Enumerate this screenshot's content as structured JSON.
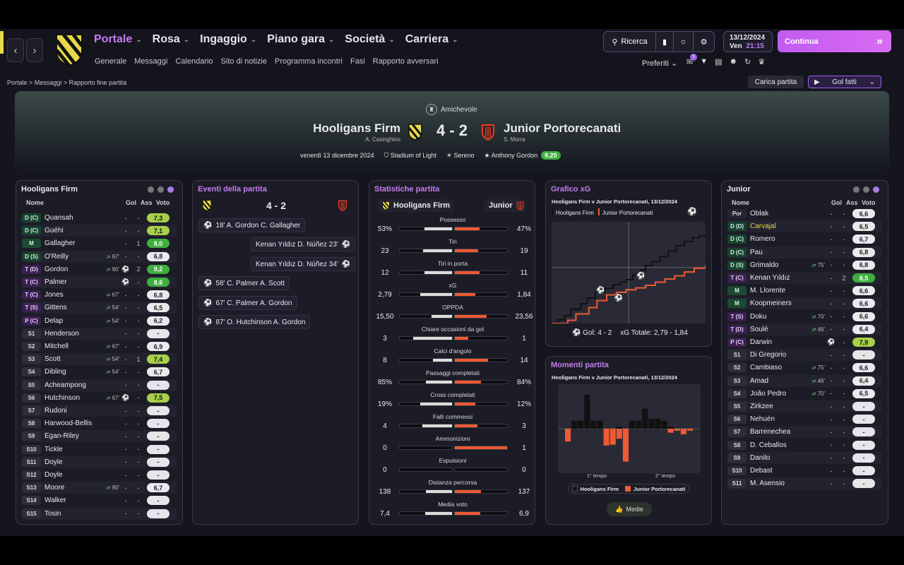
{
  "nav": {
    "menu": [
      "Portale",
      "Rosa",
      "Ingaggio",
      "Piano gara",
      "Società",
      "Carriera"
    ],
    "submenu": [
      "Generale",
      "Messaggi",
      "Calendario",
      "Sito di notizie",
      "Programma incontri",
      "Fasi",
      "Rapporto avversari"
    ],
    "search": "Ricerca",
    "date": "13/12/2024",
    "day": "Ven",
    "time": "21:15",
    "continue": "Continua",
    "prefs": "Preferiti",
    "badge": "5"
  },
  "breadcrumb": [
    "Portale",
    "Messaggi",
    "Rapporto fine partita"
  ],
  "actions": {
    "load": "Carica partita",
    "goals": "Gol fatti"
  },
  "match": {
    "competition": "Amichevole",
    "home": "Hooligans Firm",
    "home_mgr": "A. Casinghino",
    "score": "4 - 2",
    "away": "Junior Portorecanati",
    "away_mgr": "S. Morra",
    "date": "venerdì 13 dicembre 2024",
    "stadium": "Stadium of Light",
    "weather": "Sereno",
    "motm": "Anthony Gordon",
    "motm_rating": "9,20"
  },
  "home_panel": {
    "title": "Hooligans Firm",
    "cols": [
      "Nome",
      "Gol",
      "Ass",
      "Voto"
    ],
    "players": [
      {
        "pos": "D (C)",
        "t": "d",
        "name": "Quansah",
        "sub": "",
        "icon": "",
        "gol": "-",
        "ass": "-",
        "vote": "7,3",
        "vc": "v-g1"
      },
      {
        "pos": "D (C)",
        "t": "d",
        "name": "Guéhi",
        "sub": "",
        "icon": "",
        "gol": "-",
        "ass": "-",
        "vote": "7,1",
        "vc": "v-g1"
      },
      {
        "pos": "M",
        "t": "m",
        "name": "Gallagher",
        "sub": "",
        "icon": "",
        "gol": "-",
        "ass": "1",
        "vote": "8,0",
        "vc": "v-g2"
      },
      {
        "pos": "D (S)",
        "t": "d",
        "name": "O'Reilly",
        "sub": "67'",
        "icon": "",
        "gol": "-",
        "ass": "-",
        "vote": "6,8",
        "vc": "v-w"
      },
      {
        "pos": "T (D)",
        "t": "t",
        "name": "Gordon",
        "sub": "90'",
        "icon": "⚽",
        "gol": "",
        "ass": "2",
        "vote": "9,2",
        "vc": "v-g2"
      },
      {
        "pos": "T (C)",
        "t": "t",
        "name": "Palmer",
        "sub": "",
        "icon": "⚽",
        "gol": "",
        "ass": "-",
        "vote": "8,6",
        "vc": "v-g2"
      },
      {
        "pos": "T (C)",
        "t": "t",
        "name": "Jones",
        "sub": "67'",
        "icon": "",
        "gol": "-",
        "ass": "-",
        "vote": "6,8",
        "vc": "v-w"
      },
      {
        "pos": "T (S)",
        "t": "t",
        "name": "Gittens",
        "sub": "54'",
        "icon": "",
        "gol": "-",
        "ass": "-",
        "vote": "6,5",
        "vc": "v-w"
      },
      {
        "pos": "P (C)",
        "t": "t",
        "name": "Delap",
        "sub": "54'",
        "icon": "",
        "gol": "-",
        "ass": "-",
        "vote": "6,2",
        "vc": "v-w"
      },
      {
        "pos": "S1",
        "t": "s",
        "name": "Henderson",
        "sub": "",
        "icon": "",
        "gol": "-",
        "ass": "-",
        "vote": "-",
        "vc": "v-no"
      },
      {
        "pos": "S2",
        "t": "s",
        "name": "Mitchell",
        "sub": "67'",
        "icon": "",
        "gol": "-",
        "ass": "-",
        "vote": "6,9",
        "vc": "v-w"
      },
      {
        "pos": "S3",
        "t": "s",
        "name": "Scott",
        "sub": "54'",
        "icon": "",
        "gol": "-",
        "ass": "1",
        "vote": "7,4",
        "vc": "v-g1"
      },
      {
        "pos": "S4",
        "t": "s",
        "name": "Dibling",
        "sub": "54'",
        "icon": "",
        "gol": "-",
        "ass": "-",
        "vote": "6,7",
        "vc": "v-w"
      },
      {
        "pos": "S5",
        "t": "s",
        "name": "Acheampong",
        "sub": "",
        "icon": "",
        "gol": "-",
        "ass": "-",
        "vote": "-",
        "vc": "v-no"
      },
      {
        "pos": "S6",
        "t": "s",
        "name": "Hutchinson",
        "sub": "67'",
        "icon": "⚽",
        "gol": "",
        "ass": "-",
        "vote": "7,5",
        "vc": "v-g1"
      },
      {
        "pos": "S7",
        "t": "s",
        "name": "Rudoni",
        "sub": "",
        "icon": "",
        "gol": "-",
        "ass": "-",
        "vote": "-",
        "vc": "v-no"
      },
      {
        "pos": "S8",
        "t": "s",
        "name": "Harwood-Bellis",
        "sub": "",
        "icon": "",
        "gol": "-",
        "ass": "-",
        "vote": "-",
        "vc": "v-no"
      },
      {
        "pos": "S9",
        "t": "s",
        "name": "Egan-Riley",
        "sub": "",
        "icon": "",
        "gol": "-",
        "ass": "-",
        "vote": "-",
        "vc": "v-no"
      },
      {
        "pos": "S10",
        "t": "s",
        "name": "Tickle",
        "sub": "",
        "icon": "",
        "gol": "-",
        "ass": "-",
        "vote": "-",
        "vc": "v-no"
      },
      {
        "pos": "S11",
        "t": "s",
        "name": "Doyle",
        "sub": "",
        "icon": "",
        "gol": "-",
        "ass": "-",
        "vote": "-",
        "vc": "v-no"
      },
      {
        "pos": "S12",
        "t": "s",
        "name": "Doyle",
        "sub": "",
        "icon": "",
        "gol": "-",
        "ass": "-",
        "vote": "-",
        "vc": "v-no"
      },
      {
        "pos": "S13",
        "t": "s",
        "name": "Moore",
        "sub": "90'",
        "icon": "",
        "gol": "-",
        "ass": "-",
        "vote": "6,7",
        "vc": "v-w"
      },
      {
        "pos": "S14",
        "t": "s",
        "name": "Walker",
        "sub": "",
        "icon": "",
        "gol": "-",
        "ass": "-",
        "vote": "-",
        "vc": "v-no"
      },
      {
        "pos": "S15",
        "t": "s",
        "name": "Tosin",
        "sub": "",
        "icon": "",
        "gol": "-",
        "ass": "-",
        "vote": "-",
        "vc": "v-no"
      }
    ]
  },
  "away_panel": {
    "title": "Junior",
    "cols": [
      "Nome",
      "Gol",
      "Ass",
      "Voto"
    ],
    "players": [
      {
        "pos": "Por",
        "t": "gk",
        "name": "Oblak",
        "sub": "",
        "icon": "",
        "gol": "-",
        "ass": "-",
        "vote": "6,6",
        "vc": "v-w"
      },
      {
        "pos": "D (D)",
        "t": "d",
        "name": "Carvajal",
        "sub": "",
        "icon": "",
        "gol": "-",
        "ass": "-",
        "vote": "6,5",
        "vc": "v-w",
        "yellow": true
      },
      {
        "pos": "D (C)",
        "t": "d",
        "name": "Romero",
        "sub": "",
        "icon": "",
        "gol": "-",
        "ass": "-",
        "vote": "6,7",
        "vc": "v-w"
      },
      {
        "pos": "D (C)",
        "t": "d",
        "name": "Pau",
        "sub": "",
        "icon": "",
        "gol": "-",
        "ass": "-",
        "vote": "6,8",
        "vc": "v-w"
      },
      {
        "pos": "D (S)",
        "t": "d",
        "name": "Grimaldo",
        "sub": "75'",
        "icon": "",
        "gol": "-",
        "ass": "-",
        "vote": "6,8",
        "vc": "v-w"
      },
      {
        "pos": "T (C)",
        "t": "t",
        "name": "Kenan Yıldız",
        "sub": "",
        "icon": "",
        "gol": "-",
        "ass": "2",
        "vote": "8,5",
        "vc": "v-g2"
      },
      {
        "pos": "M",
        "t": "m",
        "name": "M. Llorente",
        "sub": "",
        "icon": "",
        "gol": "-",
        "ass": "-",
        "vote": "6,6",
        "vc": "v-w"
      },
      {
        "pos": "M",
        "t": "m",
        "name": "Koopmeiners",
        "sub": "",
        "icon": "",
        "gol": "-",
        "ass": "-",
        "vote": "6,6",
        "vc": "v-w"
      },
      {
        "pos": "T (S)",
        "t": "t",
        "name": "Doku",
        "sub": "70'",
        "icon": "",
        "gol": "-",
        "ass": "-",
        "vote": "6,6",
        "vc": "v-w"
      },
      {
        "pos": "T (D)",
        "t": "t",
        "name": "Soulé",
        "sub": "46'",
        "icon": "",
        "gol": "-",
        "ass": "-",
        "vote": "6,4",
        "vc": "v-w"
      },
      {
        "pos": "P (C)",
        "t": "t",
        "name": "Darwin",
        "sub": "",
        "icon": "⚽",
        "gol": "",
        "ass": "-",
        "vote": "7,9",
        "vc": "v-g1"
      },
      {
        "pos": "S1",
        "t": "s",
        "name": "Di Gregorio",
        "sub": "",
        "icon": "",
        "gol": "-",
        "ass": "-",
        "vote": "-",
        "vc": "v-no"
      },
      {
        "pos": "S2",
        "t": "s",
        "name": "Cambiaso",
        "sub": "75'",
        "icon": "",
        "gol": "-",
        "ass": "-",
        "vote": "6,6",
        "vc": "v-w"
      },
      {
        "pos": "S3",
        "t": "s",
        "name": "Amad",
        "sub": "46'",
        "icon": "",
        "gol": "-",
        "ass": "-",
        "vote": "6,4",
        "vc": "v-w"
      },
      {
        "pos": "S4",
        "t": "s",
        "name": "João Pedro",
        "sub": "70'",
        "icon": "",
        "gol": "-",
        "ass": "-",
        "vote": "6,5",
        "vc": "v-w"
      },
      {
        "pos": "S5",
        "t": "s",
        "name": "Zirkzee",
        "sub": "",
        "icon": "",
        "gol": "-",
        "ass": "-",
        "vote": "-",
        "vc": "v-no"
      },
      {
        "pos": "S6",
        "t": "s",
        "name": "Nehuén",
        "sub": "",
        "icon": "",
        "gol": "-",
        "ass": "-",
        "vote": "-",
        "vc": "v-no"
      },
      {
        "pos": "S7",
        "t": "s",
        "name": "Barrenechea",
        "sub": "",
        "icon": "",
        "gol": "-",
        "ass": "-",
        "vote": "-",
        "vc": "v-no"
      },
      {
        "pos": "S8",
        "t": "s",
        "name": "D. Ceballos",
        "sub": "",
        "icon": "",
        "gol": "-",
        "ass": "-",
        "vote": "-",
        "vc": "v-no"
      },
      {
        "pos": "S9",
        "t": "s",
        "name": "Danilo",
        "sub": "",
        "icon": "",
        "gol": "-",
        "ass": "-",
        "vote": "-",
        "vc": "v-no"
      },
      {
        "pos": "S10",
        "t": "s",
        "name": "Debast",
        "sub": "",
        "icon": "",
        "gol": "-",
        "ass": "-",
        "vote": "-",
        "vc": "v-no"
      },
      {
        "pos": "S11",
        "t": "s",
        "name": "M. Asensio",
        "sub": "",
        "icon": "",
        "gol": "-",
        "ass": "-",
        "vote": "-",
        "vc": "v-no"
      }
    ]
  },
  "events": {
    "title": "Eventi della partita",
    "score": "4 - 2",
    "items": [
      {
        "side": "home",
        "text": "18'  A. Gordon  C. Gallagher"
      },
      {
        "side": "away",
        "text": "Kenan Yıldız  D. Núñez  23'"
      },
      {
        "side": "away",
        "text": "Kenan Yıldız  D. Núñez  34'"
      },
      {
        "side": "home",
        "text": "58'  C. Palmer  A. Scott"
      },
      {
        "side": "home",
        "text": "67'  C. Palmer  A. Gordon"
      },
      {
        "side": "home",
        "text": "87'  O. Hutchinson  A. Gordon"
      }
    ]
  },
  "stats": {
    "title": "Statistiche partita",
    "home": "Hooligans Firm",
    "away": "Junior",
    "rows": [
      {
        "label": "Possesso",
        "l": "53%",
        "r": "47%",
        "lv": 53,
        "rv": 47
      },
      {
        "label": "Tiri",
        "l": "23",
        "r": "19",
        "lv": 23,
        "rv": 19
      },
      {
        "label": "Tiri in porta",
        "l": "12",
        "r": "11",
        "lv": 12,
        "rv": 11
      },
      {
        "label": "xG",
        "l": "2,79",
        "r": "1,84",
        "lv": 2.79,
        "rv": 1.84
      },
      {
        "label": "OPPDA",
        "l": "15,50",
        "r": "23,56",
        "lv": 15.5,
        "rv": 23.56
      },
      {
        "label": "Chiare occasioni da gol",
        "l": "3",
        "r": "1",
        "lv": 3,
        "rv": 1
      },
      {
        "label": "Calci d'angolo",
        "l": "8",
        "r": "14",
        "lv": 8,
        "rv": 14
      },
      {
        "label": "Passaggi completati",
        "l": "85%",
        "r": "84%",
        "lv": 85,
        "rv": 84
      },
      {
        "label": "Cross completati",
        "l": "19%",
        "r": "12%",
        "lv": 19,
        "rv": 12
      },
      {
        "label": "Falli commessi",
        "l": "4",
        "r": "3",
        "lv": 4,
        "rv": 3
      },
      {
        "label": "Ammonizioni",
        "l": "0",
        "r": "1",
        "lv": 0,
        "rv": 1
      },
      {
        "label": "Espulsioni",
        "l": "0",
        "r": "0",
        "lv": 0,
        "rv": 0
      },
      {
        "label": "Distanza percorsa",
        "l": "138",
        "r": "137",
        "lv": 138,
        "rv": 137
      },
      {
        "label": "Media voto",
        "l": "7,4",
        "r": "6,9",
        "lv": 7.4,
        "rv": 6.9
      }
    ]
  },
  "xg": {
    "title": "Grafico xG",
    "subtitle": "Hooligans Firm v Junior Portorecanati, 13/12/2024",
    "legend_home": "Hooligans Firm",
    "legend_away": "Junior Portorecanati",
    "goals_label": "Gol: 4 - 2",
    "xg_label": "xG Totale: 2,79 - 1,84"
  },
  "momentum": {
    "title": "Momenti partita",
    "subtitle": "Hooligans Firm v Junior Portorecanati, 13/12/2024",
    "half1": "1° tempo",
    "half2": "2° tempo",
    "legend_home": "Hooligans Firm",
    "legend_away": "Junior Portorecanati",
    "button": "Medie"
  },
  "chart_data": [
    {
      "type": "line",
      "title": "Grafico xG",
      "subtitle": "Hooligans Firm v Junior Portorecanati, 13/12/2024",
      "xlim": [
        0,
        95
      ],
      "ylim": [
        0,
        3.2
      ],
      "series": [
        {
          "name": "Hooligans Firm",
          "color": "#111111",
          "x": [
            0,
            4,
            8,
            12,
            18,
            22,
            27,
            33,
            38,
            42,
            46,
            50,
            55,
            58,
            62,
            67,
            72,
            77,
            82,
            87,
            91,
            95
          ],
          "y": [
            0,
            0.12,
            0.25,
            0.45,
            0.62,
            0.8,
            0.98,
            1.1,
            1.22,
            1.3,
            1.38,
            1.52,
            1.68,
            1.82,
            1.95,
            2.1,
            2.28,
            2.45,
            2.58,
            2.7,
            2.76,
            2.79
          ]
        },
        {
          "name": "Junior Portorecanati",
          "color": "#ee5a34",
          "x": [
            0,
            10,
            15,
            23,
            28,
            34,
            40,
            46,
            52,
            58,
            64,
            70,
            76,
            82,
            88,
            95
          ],
          "y": [
            0,
            0.1,
            0.3,
            0.5,
            0.72,
            0.9,
            0.98,
            1.06,
            1.12,
            1.2,
            1.3,
            1.4,
            1.5,
            1.62,
            1.74,
            1.84
          ]
        }
      ]
    },
    {
      "type": "bar",
      "title": "Momenti partita",
      "subtitle": "Hooligans Firm v Junior Portorecanati, 13/12/2024",
      "categories": [
        "1",
        "2",
        "3",
        "4",
        "5",
        "6",
        "7",
        "8",
        "9",
        "10",
        "11",
        "12",
        "13",
        "14",
        "15",
        "16",
        "17",
        "18",
        "19",
        "20"
      ],
      "series": [
        {
          "name": "Hooligans Firm",
          "color": "#111111",
          "values": [
            0,
            0.2,
            0.2,
            0.85,
            0.2,
            0.2,
            0,
            0,
            0.05,
            0,
            0.2,
            0.2,
            0.5,
            0.25,
            0.25,
            0.2,
            0.05,
            0,
            0,
            0
          ]
        },
        {
          "name": "Junior Portorecanati",
          "color": "#ee5a34",
          "values": [
            -0.32,
            0,
            0,
            0,
            0,
            0,
            -0.42,
            -0.4,
            -0.25,
            -0.82,
            0,
            0,
            0,
            0,
            0,
            0,
            -0.1,
            -0.05,
            -0.14,
            -0.05
          ]
        }
      ]
    }
  ]
}
